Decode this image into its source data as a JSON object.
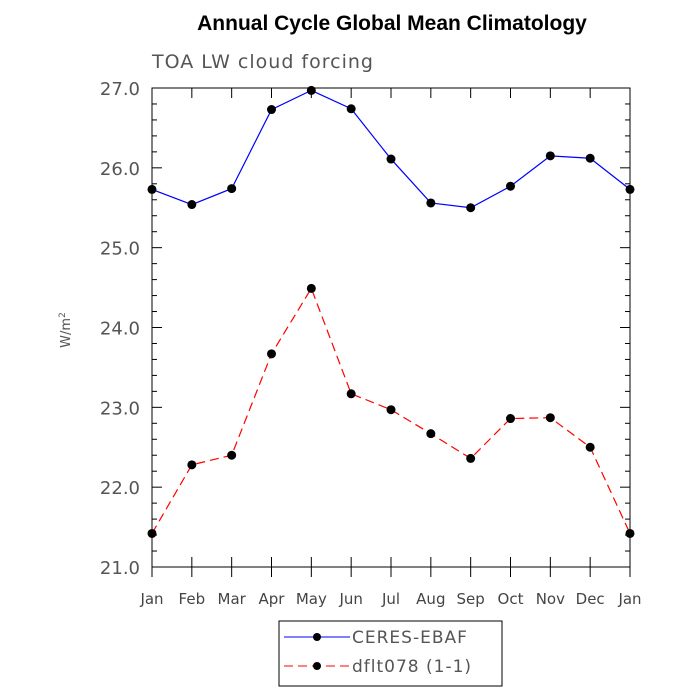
{
  "chart_data": {
    "type": "line",
    "title": "Annual Cycle Global Mean Climatology",
    "subtitle": "TOA LW cloud forcing",
    "ylabel": "W/m",
    "ylabel_sup": "2",
    "ylim": [
      21.0,
      27.0
    ],
    "yticks": [
      "21.0",
      "22.0",
      "23.0",
      "24.0",
      "25.0",
      "26.0",
      "27.0"
    ],
    "categories": [
      "Jan",
      "Feb",
      "Mar",
      "Apr",
      "May",
      "Jun",
      "Jul",
      "Aug",
      "Sep",
      "Oct",
      "Nov",
      "Dec",
      "Jan"
    ],
    "series": [
      {
        "name": "CERES-EBAF",
        "color": "#0000ff",
        "dash": "solid",
        "values": [
          25.73,
          25.54,
          25.74,
          26.73,
          26.97,
          26.74,
          26.11,
          25.56,
          25.5,
          25.77,
          26.15,
          26.12,
          25.73
        ]
      },
      {
        "name": "dflt078 (1-1)",
        "color": "#ff0000",
        "dash": "dashed",
        "values": [
          21.42,
          22.28,
          22.4,
          23.67,
          24.49,
          23.17,
          22.97,
          22.67,
          22.36,
          22.86,
          22.87,
          22.5,
          21.42
        ]
      }
    ],
    "legend_position": "bottom-center",
    "grid": false
  }
}
